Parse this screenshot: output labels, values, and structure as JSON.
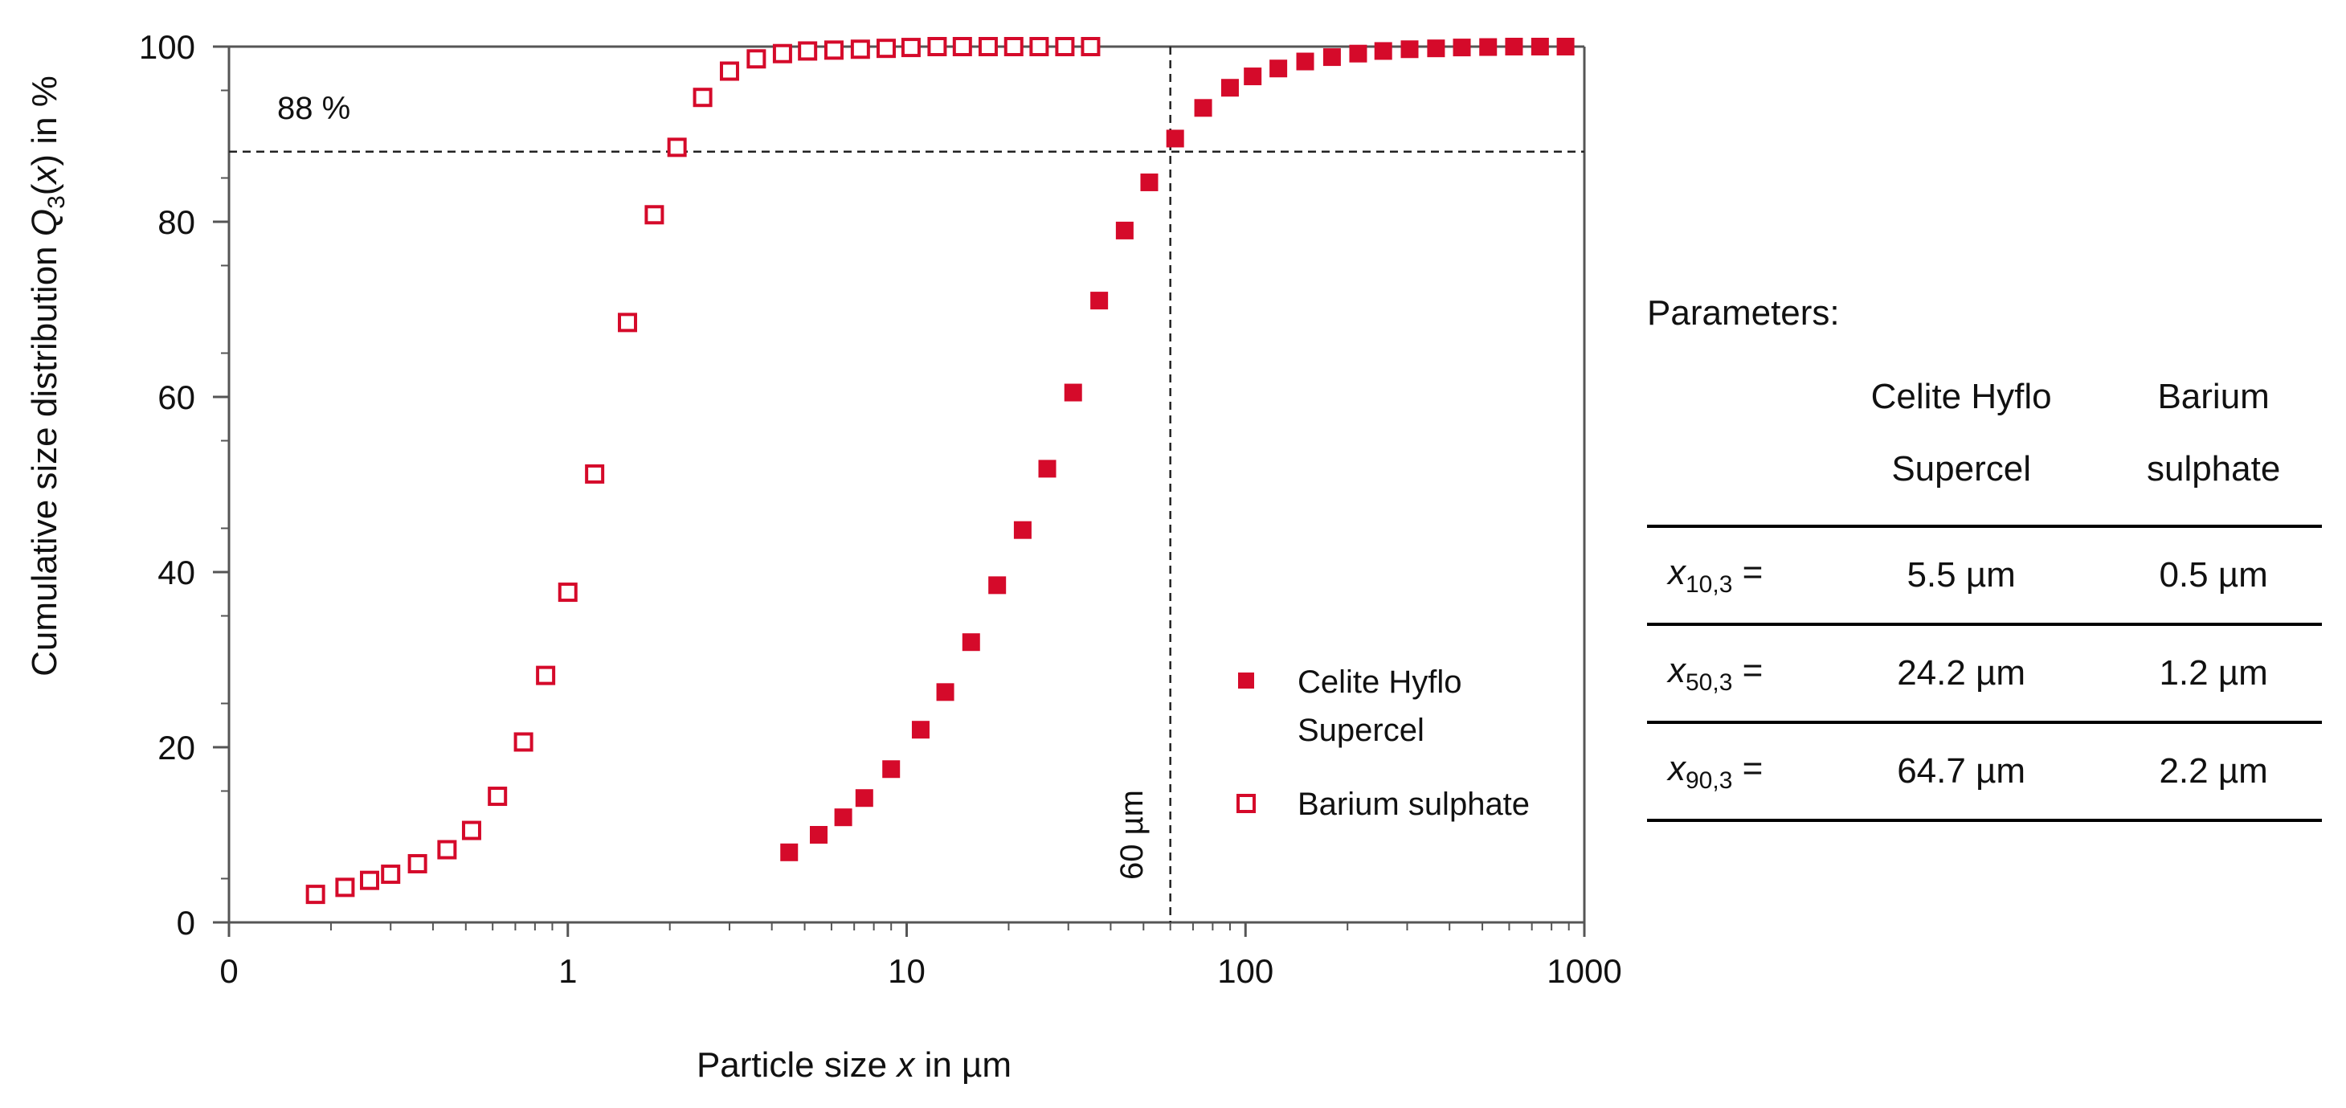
{
  "chart_data": {
    "type": "scatter",
    "x_scale": "log",
    "xlabel": "Particle size x in µm",
    "ylabel": "Cumulative size distribution Q3(x) in %",
    "xlim": [
      0.1,
      1000
    ],
    "ylim": [
      0,
      100
    ],
    "x_ticks": [
      "0",
      "1",
      "10",
      "100",
      "1000"
    ],
    "y_ticks": [
      "0",
      "20",
      "40",
      "60",
      "80",
      "100"
    ],
    "series": [
      {
        "name": "Celite Hyflo Supercel",
        "marker": "filled-square",
        "color": "#d50a2a",
        "x": [
          4.5,
          5.5,
          6.5,
          7.5,
          9,
          11,
          13,
          15.5,
          18.5,
          22,
          26,
          31,
          37,
          44,
          52,
          62,
          75,
          90,
          105,
          125,
          150,
          180,
          215,
          255,
          305,
          365,
          435,
          520,
          620,
          740,
          880
        ],
        "y": [
          8,
          10,
          12,
          14.2,
          17.5,
          22,
          26.3,
          32,
          38.5,
          44.8,
          51.8,
          60.5,
          71,
          79,
          84.5,
          89.5,
          93,
          95.3,
          96.6,
          97.5,
          98.3,
          98.8,
          99.2,
          99.5,
          99.7,
          99.8,
          99.9,
          99.95,
          100,
          100,
          100
        ]
      },
      {
        "name": "Barium sulphate",
        "marker": "open-square",
        "color": "#d50a2a",
        "x": [
          0.18,
          0.22,
          0.26,
          0.3,
          0.36,
          0.44,
          0.52,
          0.62,
          0.74,
          0.86,
          1.0,
          1.2,
          1.5,
          1.8,
          2.1,
          2.5,
          3.0,
          3.6,
          4.3,
          5.1,
          6.1,
          7.3,
          8.7,
          10.3,
          12.3,
          14.6,
          17.4,
          20.7,
          24.6,
          29.3,
          34.9
        ],
        "y": [
          3.2,
          4,
          4.8,
          5.5,
          6.7,
          8.3,
          10.5,
          14.4,
          20.6,
          28.2,
          37.7,
          51.2,
          68.5,
          80.8,
          88.5,
          94.2,
          97.2,
          98.6,
          99.2,
          99.5,
          99.6,
          99.7,
          99.8,
          99.9,
          100,
          100,
          100,
          100,
          100,
          100,
          100
        ]
      }
    ],
    "reference_lines": [
      {
        "orientation": "horizontal",
        "y": 88,
        "label": "88 %"
      },
      {
        "orientation": "vertical",
        "x": 60,
        "label": "60 µm"
      }
    ],
    "legend_position": "bottom-right-inside"
  },
  "parameters": {
    "title": "Parameters:",
    "columns": [
      "Celite Hyflo Supercel",
      "Barium sulphate"
    ],
    "col1_line1": "Celite Hyflo",
    "col1_line2": "Supercel",
    "col2_line1": "Barium",
    "col2_line2": "sulphate",
    "rows": [
      {
        "label": "x",
        "sub": "10,3",
        "eq": " =",
        "celite": "5.5 µm",
        "barium": "0.5 µm"
      },
      {
        "label": "x",
        "sub": "50,3",
        "eq": " =",
        "celite": "24.2 µm",
        "barium": "1.2 µm"
      },
      {
        "label": "x",
        "sub": "90,3",
        "eq": " =",
        "celite": "64.7 µm",
        "barium": "2.2 µm"
      }
    ]
  },
  "colors": {
    "marker": "#d50a2a",
    "axis": "#555555",
    "text": "#111111"
  }
}
